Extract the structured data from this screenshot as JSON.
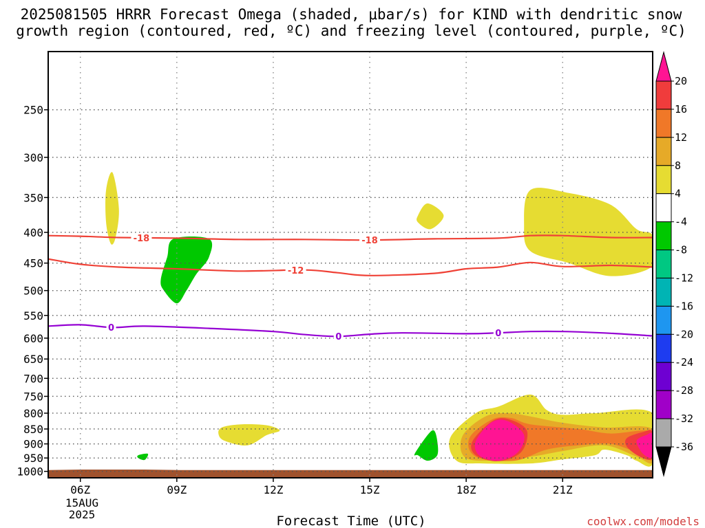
{
  "title_line1": "2025081505 HRRR Forecast Omega (shaded, μbar/s) for KIND with dendritic snow",
  "title_line2": "growth region (contoured, red, ºC) and freezing level (contoured, purple, ºC)",
  "credit": "coolwx.com/models",
  "chart_data": {
    "type": "time-height cross section",
    "xlabel": "Forecast Time (UTC)",
    "ylabel": "",
    "x_ticks": [
      "06Z",
      "09Z",
      "12Z",
      "15Z",
      "18Z",
      "21Z"
    ],
    "x_tick_hours": [
      6,
      9,
      12,
      15,
      18,
      21
    ],
    "x_date_line1": "15AUG",
    "x_date_line2": "2025",
    "xlim": [
      5.0,
      23.8
    ],
    "y_ticks": [
      250,
      300,
      350,
      400,
      450,
      500,
      550,
      600,
      650,
      700,
      750,
      800,
      850,
      900,
      950,
      1000
    ],
    "y_tick_labels": [
      "250",
      "300",
      "350",
      "400",
      "450",
      "500",
      "550",
      "600",
      "650",
      "700",
      "750",
      "800",
      "850",
      "900",
      "950",
      "1000"
    ],
    "y_scale": "log-pressure (inverted)",
    "ylim_hPa": [
      200,
      1025
    ],
    "grid": "dotted",
    "colorbar": {
      "labels": [
        "20",
        "16",
        "12",
        "8",
        "4",
        "-4",
        "-8",
        "-12",
        "-16",
        "-20",
        "-24",
        "-28",
        "-32",
        "-36"
      ],
      "values": [
        20,
        16,
        12,
        8,
        4,
        -4,
        -8,
        -12,
        -16,
        -20,
        -24,
        -28,
        -32,
        -36
      ],
      "colors": [
        "#ff1493",
        "#f03c3c",
        "#f07828",
        "#e6aa28",
        "#e6dc32",
        "#ffffff",
        "#00c800",
        "#00c882",
        "#00b4b4",
        "#1e96f0",
        "#1e3cf0",
        "#6e00d2",
        "#a000c8",
        "#aaaaaa",
        "#000000"
      ]
    },
    "contours": [
      {
        "label": "-18",
        "color": "#ef4136",
        "points": [
          [
            5.0,
            405
          ],
          [
            6.0,
            406
          ],
          [
            7.2,
            408
          ],
          [
            9.0,
            409
          ],
          [
            11.0,
            411
          ],
          [
            13.0,
            411
          ],
          [
            15.0,
            412
          ],
          [
            17.0,
            410
          ],
          [
            19.0,
            409
          ],
          [
            20.0,
            405
          ],
          [
            21.0,
            405
          ],
          [
            22.5,
            408
          ],
          [
            23.8,
            408
          ]
        ],
        "label_hours": [
          7.9,
          15.0
        ]
      },
      {
        "label": "-12",
        "color": "#ef4136",
        "points": [
          [
            5.0,
            443
          ],
          [
            6.0,
            452
          ],
          [
            7.2,
            457
          ],
          [
            9.0,
            460
          ],
          [
            11.0,
            464
          ],
          [
            13.0,
            462
          ],
          [
            14.0,
            467
          ],
          [
            15.0,
            472
          ],
          [
            17.0,
            468
          ],
          [
            18.0,
            460
          ],
          [
            19.0,
            457
          ],
          [
            20.0,
            449
          ],
          [
            21.0,
            456
          ],
          [
            22.5,
            454
          ],
          [
            23.8,
            457
          ]
        ],
        "label_hours": [
          12.7
        ]
      },
      {
        "label": "0",
        "color": "#9400d3",
        "points": [
          [
            5.0,
            573
          ],
          [
            6.0,
            570
          ],
          [
            7.0,
            576
          ],
          [
            8.0,
            573
          ],
          [
            10.0,
            578
          ],
          [
            12.0,
            585
          ],
          [
            13.0,
            592
          ],
          [
            14.0,
            596
          ],
          [
            15.0,
            591
          ],
          [
            16.0,
            588
          ],
          [
            18.0,
            590
          ],
          [
            19.0,
            588
          ],
          [
            20.0,
            585
          ],
          [
            21.0,
            585
          ],
          [
            22.5,
            589
          ],
          [
            23.8,
            595
          ]
        ],
        "label_hours": [
          6.96,
          14.03,
          19.0
        ]
      }
    ],
    "omega_regions": [
      {
        "value_range": "4 to 8",
        "color": "#e6dc32",
        "points": [
          [
            7.0,
            318
          ],
          [
            7.2,
            365
          ],
          [
            7.1,
            407
          ],
          [
            6.95,
            418
          ],
          [
            6.8,
            385
          ],
          [
            6.8,
            340
          ]
        ]
      },
      {
        "value_range": "-8 to -4",
        "color": "#00c800",
        "points": [
          [
            8.9,
            410
          ],
          [
            10.0,
            410
          ],
          [
            10.0,
            440
          ],
          [
            9.6,
            470
          ],
          [
            9.3,
            500
          ],
          [
            9.0,
            525
          ],
          [
            8.6,
            500
          ],
          [
            8.5,
            480
          ],
          [
            8.7,
            440
          ]
        ]
      },
      {
        "value_range": "4 to 8",
        "color": "#e6dc32",
        "points": [
          [
            16.5,
            375
          ],
          [
            16.8,
            358
          ],
          [
            17.3,
            375
          ],
          [
            16.9,
            395
          ],
          [
            16.5,
            385
          ]
        ]
      },
      {
        "value_range": "4 to 8",
        "color": "#e6dc32",
        "points": [
          [
            20.0,
            340
          ],
          [
            21.2,
            344
          ],
          [
            22.5,
            360
          ],
          [
            23.3,
            395
          ],
          [
            23.8,
            405
          ],
          [
            23.8,
            455
          ],
          [
            22.5,
            473
          ],
          [
            21.2,
            450
          ],
          [
            20.0,
            430
          ],
          [
            19.8,
            390
          ]
        ]
      },
      {
        "value_range": "4 to 8",
        "color": "#e6dc32",
        "points": [
          [
            10.4,
            845
          ],
          [
            11.0,
            835
          ],
          [
            11.8,
            838
          ],
          [
            12.2,
            855
          ],
          [
            11.8,
            870
          ],
          [
            11.2,
            905
          ],
          [
            10.5,
            890
          ],
          [
            10.3,
            868
          ]
        ]
      },
      {
        "value_range": "-8 to -4",
        "color": "#00c800",
        "points": [
          [
            16.8,
            870
          ],
          [
            17.0,
            855
          ],
          [
            17.1,
            890
          ],
          [
            17.1,
            940
          ],
          [
            16.8,
            960
          ],
          [
            16.5,
            940
          ],
          [
            16.4,
            935
          ]
        ]
      },
      {
        "value_range": "-8 to -4",
        "color": "#00c800",
        "points": [
          [
            7.8,
            940
          ],
          [
            8.1,
            935
          ],
          [
            8.0,
            957
          ],
          [
            7.8,
            950
          ]
        ]
      },
      {
        "value_range": "4 to 8",
        "color": "#e6dc32",
        "points": [
          [
            17.5,
            880
          ],
          [
            18.3,
            800
          ],
          [
            19.0,
            780
          ],
          [
            20.0,
            745
          ],
          [
            20.5,
            790
          ],
          [
            21.0,
            805
          ],
          [
            22.0,
            800
          ],
          [
            23.8,
            800
          ],
          [
            23.8,
            970
          ],
          [
            23.3,
            960
          ],
          [
            23.0,
            940
          ],
          [
            22.3,
            920
          ],
          [
            22.0,
            940
          ],
          [
            21.0,
            955
          ],
          [
            20.0,
            970
          ],
          [
            18.5,
            970
          ],
          [
            17.7,
            960
          ]
        ]
      },
      {
        "value_range": "8 to 12",
        "color": "#e6aa28",
        "points": [
          [
            17.9,
            870
          ],
          [
            18.6,
            810
          ],
          [
            19.3,
            800
          ],
          [
            20.0,
            810
          ],
          [
            21.0,
            830
          ],
          [
            22.3,
            845
          ],
          [
            23.8,
            850
          ],
          [
            23.8,
            965
          ],
          [
            23.3,
            945
          ],
          [
            22.3,
            905
          ],
          [
            21.0,
            925
          ],
          [
            20.0,
            945
          ],
          [
            18.5,
            960
          ],
          [
            17.9,
            940
          ]
        ]
      },
      {
        "value_range": "12 to 16",
        "color": "#f07828",
        "points": [
          [
            18.1,
            880
          ],
          [
            18.8,
            820
          ],
          [
            19.4,
            815
          ],
          [
            20.0,
            835
          ],
          [
            21.5,
            850
          ],
          [
            22.5,
            865
          ],
          [
            23.8,
            860
          ],
          [
            23.8,
            955
          ],
          [
            23.4,
            935
          ],
          [
            22.5,
            900
          ],
          [
            21.5,
            905
          ],
          [
            20.5,
            920
          ],
          [
            19.5,
            960
          ],
          [
            18.3,
            945
          ]
        ]
      },
      {
        "value_range": "16 to 20",
        "color": "#f03c3c",
        "points": [
          [
            18.2,
            890
          ],
          [
            18.9,
            820
          ],
          [
            19.5,
            825
          ],
          [
            19.9,
            860
          ],
          [
            19.7,
            930
          ],
          [
            19.0,
            962
          ],
          [
            18.3,
            940
          ]
        ]
      },
      {
        "value_range": "16 to 20",
        "color": "#f03c3c",
        "points": [
          [
            23.0,
            880
          ],
          [
            23.5,
            860
          ],
          [
            23.8,
            860
          ],
          [
            23.8,
            950
          ],
          [
            23.4,
            945
          ],
          [
            23.0,
            910
          ]
        ]
      },
      {
        "value_range": ">20",
        "color": "#ff1493",
        "points": [
          [
            18.3,
            890
          ],
          [
            18.8,
            828
          ],
          [
            19.3,
            825
          ],
          [
            19.8,
            870
          ],
          [
            19.6,
            930
          ],
          [
            19.0,
            960
          ],
          [
            18.4,
            940
          ]
        ]
      },
      {
        "value_range": ">20",
        "color": "#ff1493",
        "points": [
          [
            23.3,
            890
          ],
          [
            23.6,
            870
          ],
          [
            23.8,
            868
          ],
          [
            23.8,
            945
          ],
          [
            23.5,
            935
          ]
        ]
      }
    ],
    "terrain": {
      "color": "#a0522d",
      "surface_hPa": [
        [
          5.0,
          995
        ],
        [
          6.0,
          993
        ],
        [
          8.0,
          993
        ],
        [
          9.0,
          995
        ],
        [
          23.8,
          995
        ]
      ],
      "bottom_hPa": 1025
    }
  }
}
